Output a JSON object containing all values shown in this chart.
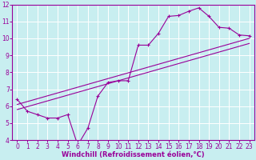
{
  "xlabel": "Windchill (Refroidissement éolien,°C)",
  "ylabel": "",
  "xlim": [
    -0.5,
    23.5
  ],
  "ylim": [
    4,
    12
  ],
  "xticks": [
    0,
    1,
    2,
    3,
    4,
    5,
    6,
    7,
    8,
    9,
    10,
    11,
    12,
    13,
    14,
    15,
    16,
    17,
    18,
    19,
    20,
    21,
    22,
    23
  ],
  "yticks": [
    4,
    5,
    6,
    7,
    8,
    9,
    10,
    11,
    12
  ],
  "bg_color": "#c8eef0",
  "line_color": "#990099",
  "grid_color": "#ffffff",
  "axis_color": "#990099",
  "data_line_x": [
    0,
    1,
    2,
    3,
    4,
    5,
    6,
    7,
    8,
    9,
    10,
    11,
    12,
    13,
    14,
    15,
    16,
    17,
    18,
    19,
    20,
    21,
    22,
    23
  ],
  "data_line_y": [
    6.4,
    5.7,
    5.5,
    5.3,
    5.3,
    5.5,
    3.7,
    4.7,
    6.6,
    7.4,
    7.5,
    7.5,
    9.6,
    9.6,
    10.3,
    11.3,
    11.35,
    11.6,
    11.8,
    11.3,
    10.65,
    10.6,
    10.2,
    10.15
  ],
  "trend1_x": [
    0,
    23
  ],
  "trend1_y": [
    6.1,
    10.0
  ],
  "trend2_x": [
    0,
    23
  ],
  "trend2_y": [
    5.8,
    9.7
  ],
  "tick_fontsize": 5.5,
  "xlabel_fontsize": 6.0
}
